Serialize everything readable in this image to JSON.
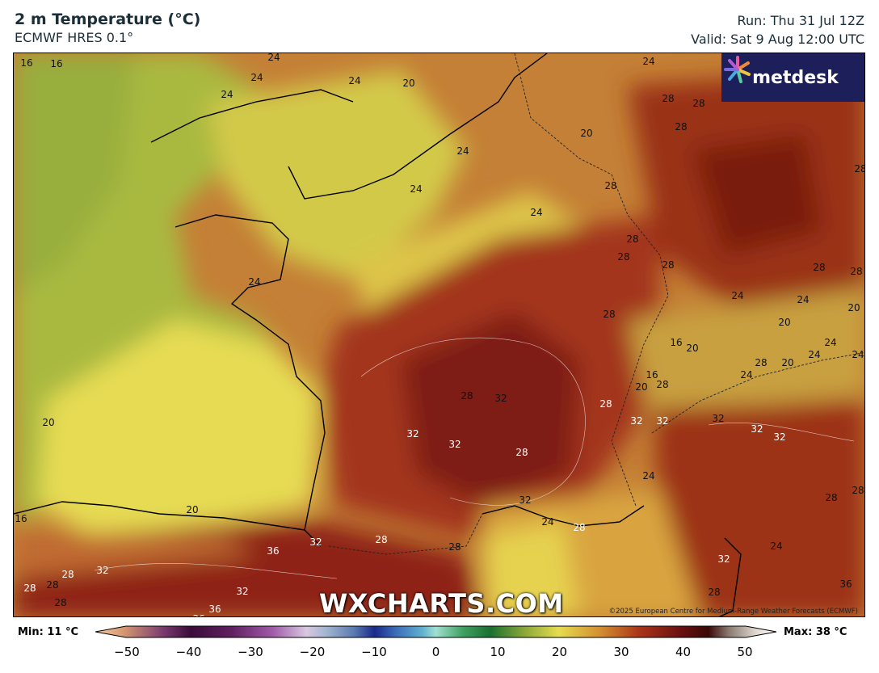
{
  "header": {
    "title": "2 m Temperature (°C)",
    "model": "ECMWF HRES 0.1°",
    "run": "Run: Thu 31 Jul 12Z",
    "valid": "Valid: Sat 9 Aug 12:00 UTC"
  },
  "logo": {
    "text": "metdesk"
  },
  "watermark": "WXCHARTS.COM",
  "copyright": "©2025 European Centre for Medium-Range Weather Forecasts (ECMWF)",
  "colorbar": {
    "min_label": "Min: 11 °C",
    "max_label": "Max: 38 °C",
    "ticks": [
      "−50",
      "−40",
      "−30",
      "−20",
      "−10",
      "0",
      "10",
      "20",
      "30",
      "40",
      "50"
    ]
  },
  "contour_labels": [
    "16",
    "16",
    "24",
    "24",
    "24",
    "20",
    "24",
    "24",
    "20",
    "24",
    "24",
    "24",
    "24",
    "28",
    "28",
    "28",
    "28",
    "28",
    "28",
    "28",
    "28",
    "28",
    "28",
    "28",
    "24",
    "24",
    "20",
    "20",
    "24",
    "24",
    "24",
    "16",
    "20",
    "16",
    "20",
    "28",
    "28",
    "20",
    "24",
    "32",
    "32",
    "32",
    "32",
    "32",
    "28",
    "28",
    "32",
    "32",
    "32",
    "24",
    "28",
    "24",
    "28",
    "32",
    "28",
    "32",
    "36",
    "20",
    "16",
    "20",
    "28",
    "28",
    "32",
    "32",
    "28",
    "28",
    "28",
    "28",
    "24",
    "28",
    "28",
    "36",
    "36",
    "36",
    "32"
  ],
  "colors": {
    "sea_cool": "#b5c84a",
    "warm_yellow": "#e8dc52",
    "orange": "#d08a3a",
    "hot_red": "#a83418",
    "very_hot": "#7a1a10"
  }
}
